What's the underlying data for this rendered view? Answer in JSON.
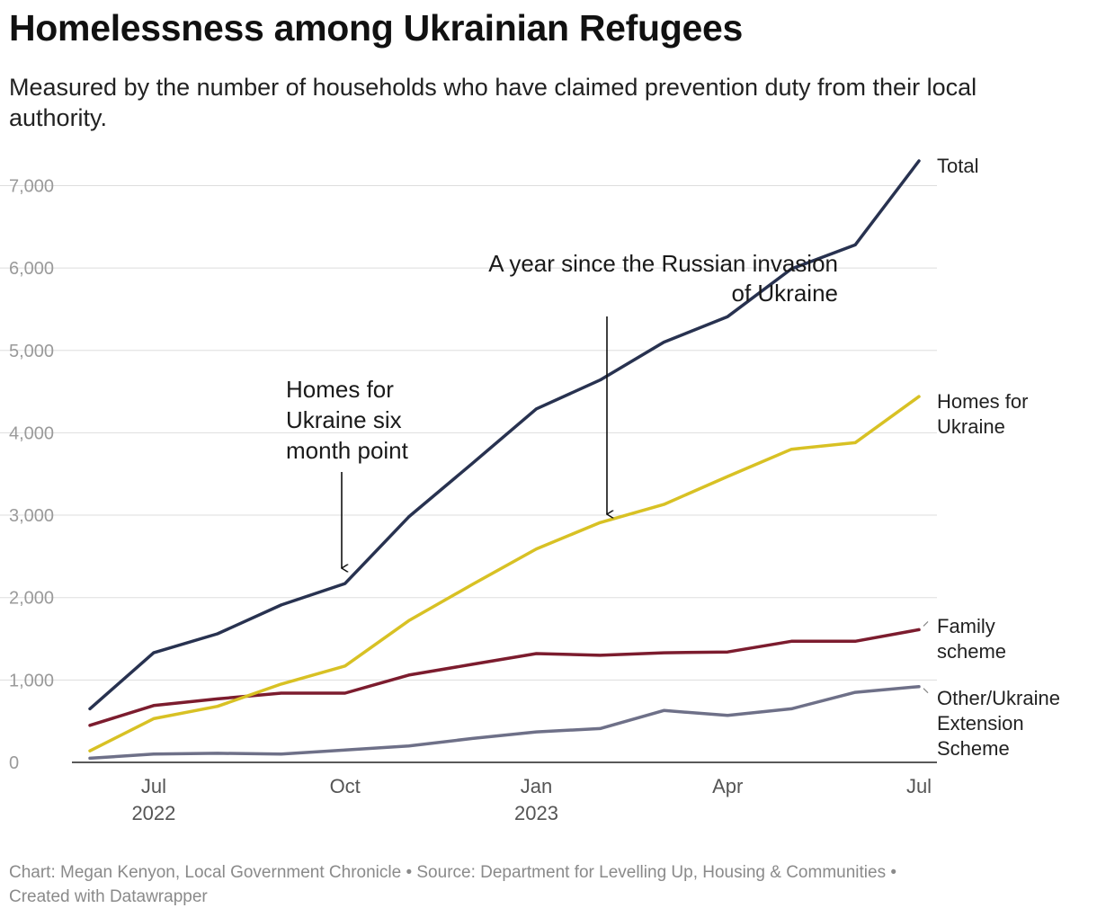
{
  "title": "Homelessness among Ukrainian Refugees",
  "subtitle": "Measured by the number of households who have claimed prevention duty from their local authority.",
  "footer": {
    "line1": "Chart: Megan Kenyon, Local Government Chronicle  • Source: Department for Levelling Up, Housing & Communities •",
    "line2": "Created with Datawrapper"
  },
  "colors": {
    "total": "#283250",
    "homes_for_ukraine": "#d8c124",
    "family_scheme": "#7c1c2e",
    "other": "#6e7088",
    "grid": "#dddddd",
    "axis": "#222222"
  },
  "chart_data": {
    "type": "line",
    "title": "Homelessness among Ukrainian Refugees",
    "x": [
      "2022-06",
      "2022-07",
      "2022-08",
      "2022-09",
      "2022-10",
      "2022-11",
      "2022-12",
      "2023-01",
      "2023-02",
      "2023-03",
      "2023-04",
      "2023-05",
      "2023-06",
      "2023-07"
    ],
    "ylim": [
      0,
      7500
    ],
    "yticks": [
      0,
      1000,
      2000,
      3000,
      4000,
      5000,
      6000,
      7000
    ],
    "ytick_labels": [
      "0",
      "1,000",
      "2,000",
      "3,000",
      "4,000",
      "5,000",
      "6,000",
      "7,000"
    ],
    "xticks": [
      {
        "x": "2022-07",
        "label": "Jul",
        "year": "2022"
      },
      {
        "x": "2022-10",
        "label": "Oct",
        "year": ""
      },
      {
        "x": "2023-01",
        "label": "Jan",
        "year": "2023"
      },
      {
        "x": "2023-04",
        "label": "Apr",
        "year": ""
      },
      {
        "x": "2023-07",
        "label": "Jul",
        "year": ""
      }
    ],
    "grid": true,
    "series": [
      {
        "key": "total",
        "label_lines": [
          "Total"
        ],
        "values": [
          650,
          1330,
          1560,
          1910,
          2170,
          2980,
          3630,
          4290,
          4640,
          5100,
          5410,
          5990,
          6280,
          7300
        ]
      },
      {
        "key": "homes_for_ukraine",
        "label_lines": [
          "Homes for",
          "Ukraine"
        ],
        "values": [
          140,
          530,
          680,
          950,
          1170,
          1720,
          2160,
          2590,
          2910,
          3130,
          3470,
          3800,
          3880,
          4440
        ]
      },
      {
        "key": "family_scheme",
        "label_lines": [
          "Family",
          "scheme"
        ],
        "values": [
          450,
          690,
          770,
          840,
          840,
          1060,
          1190,
          1320,
          1300,
          1330,
          1340,
          1470,
          1470,
          1610
        ]
      },
      {
        "key": "other",
        "label_lines": [
          "Other/Ukraine",
          "Extension",
          "Scheme"
        ],
        "values": [
          50,
          100,
          110,
          100,
          150,
          200,
          290,
          370,
          410,
          630,
          570,
          650,
          850,
          920
        ]
      }
    ],
    "annotations": [
      {
        "key": "hfu_six_month",
        "lines": [
          "Homes for",
          "Ukraine six",
          "month point"
        ],
        "x": "2022-10"
      },
      {
        "key": "invasion_year",
        "lines": [
          "A year since the Russian invasion",
          "of Ukraine"
        ],
        "x": "2023-02"
      }
    ]
  }
}
